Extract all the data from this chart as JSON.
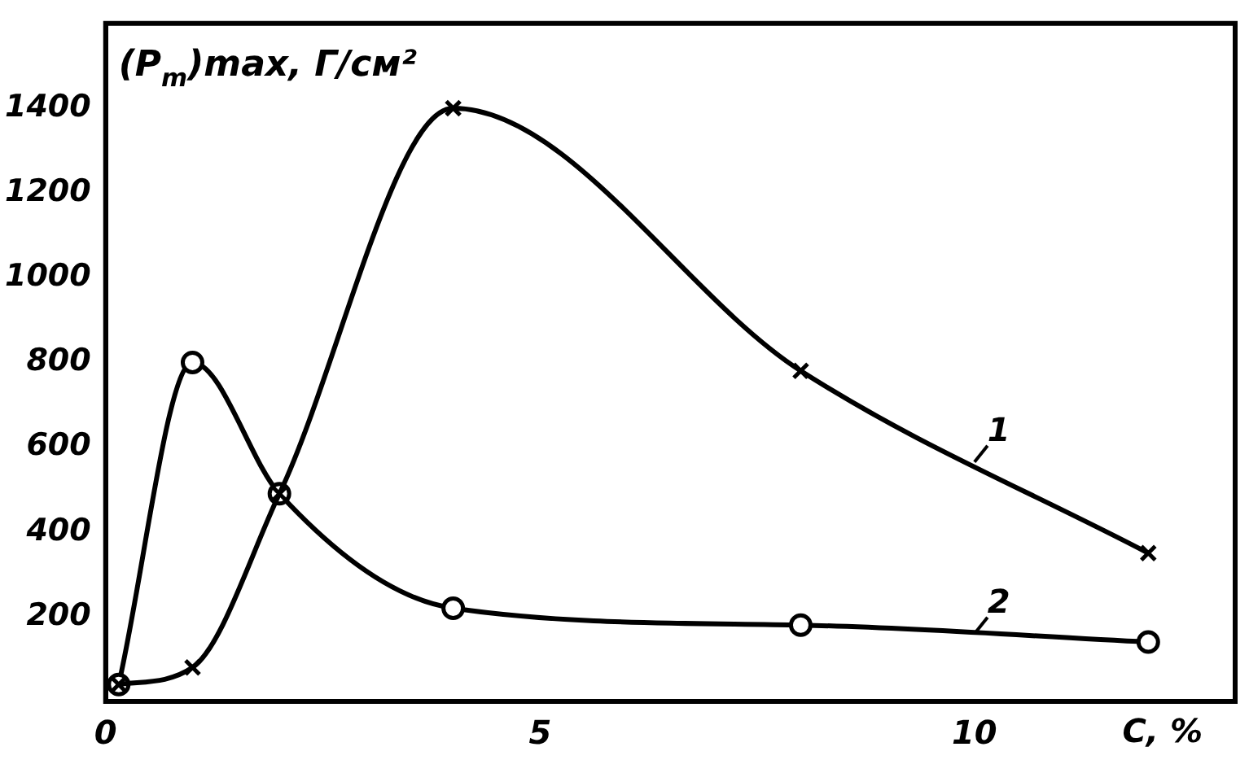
{
  "chart_data": {
    "type": "line",
    "ylabel": "(P$_{m}$)max, Г/см²",
    "xlabel": "C, %",
    "xlim": [
      0,
      13
    ],
    "xticks": [
      0,
      5,
      10
    ],
    "ylim": [
      0,
      1600
    ],
    "yticks": [
      200,
      400,
      600,
      800,
      1000,
      1200,
      1400
    ],
    "grid": false,
    "legend": false,
    "series": [
      {
        "name": "1",
        "color": "#000000",
        "marker": "cross",
        "x": [
          0.15,
          1,
          2,
          4,
          8,
          12
        ],
        "values": [
          40,
          80,
          490,
          1400,
          780,
          350
        ]
      },
      {
        "name": "2",
        "color": "#000000",
        "marker": "circle",
        "x": [
          0.15,
          1,
          2,
          4,
          8,
          12
        ],
        "values": [
          40,
          800,
          490,
          220,
          180,
          140
        ]
      }
    ]
  }
}
